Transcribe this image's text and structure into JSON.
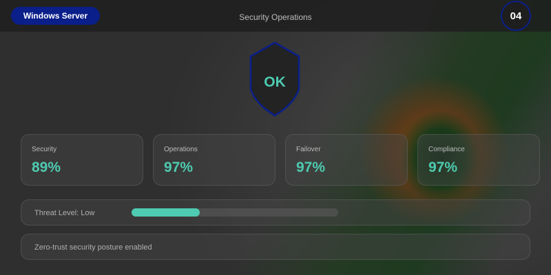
{
  "header": {
    "server_label": "Windows Server",
    "title": "Security Operations",
    "badge": "04"
  },
  "status": {
    "label": "OK",
    "shield_color": "#0a1f8a",
    "text_color": "#4ecbb0"
  },
  "metrics": [
    {
      "label": "Security",
      "value": "89%"
    },
    {
      "label": "Operations",
      "value": "97%"
    },
    {
      "label": "Failover",
      "value": "97%"
    },
    {
      "label": "Compliance",
      "value": "97%"
    }
  ],
  "threat": {
    "label": "Threat Level: Low",
    "progress_percent": 33
  },
  "note": "Zero-trust security posture enabled"
}
